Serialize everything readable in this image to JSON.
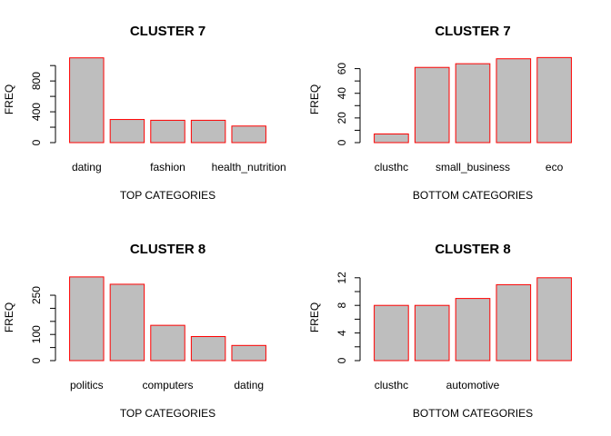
{
  "chart_data": [
    {
      "type": "bar",
      "title": "CLUSTER 7",
      "xlabel": "TOP CATEGORIES",
      "ylabel": "FREQ",
      "ylim": [
        0,
        1120
      ],
      "yticks": [
        "0",
        "400",
        "800"
      ],
      "ytick_values": [
        0,
        200,
        400,
        600,
        800,
        1000
      ],
      "categories": [
        "dating",
        "",
        "fashion",
        "",
        "health_nutrition"
      ],
      "values": [
        1100,
        300,
        290,
        290,
        215
      ]
    },
    {
      "type": "bar",
      "title": "CLUSTER 7",
      "xlabel": "BOTTOM CATEGORIES",
      "ylabel": "FREQ",
      "ylim": [
        0,
        70
      ],
      "yticks": [
        "0",
        "20",
        "40",
        "60"
      ],
      "ytick_values": [
        0,
        10,
        20,
        30,
        40,
        50,
        60
      ],
      "categories": [
        "clusthc",
        "",
        "small_business",
        "",
        "eco"
      ],
      "values": [
        7,
        61,
        64,
        68,
        69
      ]
    },
    {
      "type": "bar",
      "title": "CLUSTER 8",
      "xlabel": "TOP CATEGORIES",
      "ylabel": "FREQ",
      "ylim": [
        0,
        330
      ],
      "yticks": [
        "0",
        "100",
        "250"
      ],
      "ytick_values": [
        0,
        50,
        100,
        150,
        200,
        250
      ],
      "categories": [
        "politics",
        "",
        "computers",
        "",
        "dating"
      ],
      "values": [
        320,
        292,
        135,
        92,
        58
      ]
    },
    {
      "type": "bar",
      "title": "CLUSTER 8",
      "xlabel": "BOTTOM CATEGORIES",
      "ylabel": "FREQ",
      "ylim": [
        0,
        12.5
      ],
      "yticks": [
        "0",
        "4",
        "8",
        "12"
      ],
      "ytick_values": [
        0,
        2,
        4,
        6,
        8,
        10,
        12
      ],
      "categories": [
        "clusthc",
        "",
        "automotive",
        "",
        ""
      ],
      "values": [
        8,
        8,
        9,
        11,
        12
      ]
    }
  ],
  "colors": {
    "bar_fill": "#bebebe",
    "bar_stroke": "#ff0000",
    "axis": "#000000"
  }
}
